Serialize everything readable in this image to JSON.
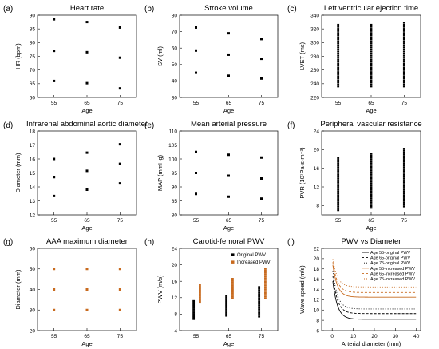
{
  "figure": {
    "colors": {
      "original": "#000000",
      "increased": "#c86a1e",
      "grey": "#555555"
    }
  },
  "chart_data": [
    {
      "id": "a",
      "panel_label": "(a)",
      "type": "scatter",
      "title": "Heart rate",
      "xlabel": "Age",
      "ylabel": "HR (bpm)",
      "xlim": [
        50,
        80
      ],
      "ylim": [
        60,
        90
      ],
      "xticks": [
        55,
        65,
        75
      ],
      "yticks": [
        60,
        65,
        70,
        75,
        80,
        85,
        90
      ],
      "series": [
        {
          "color": "#000000",
          "x": [
            55,
            55,
            55,
            65,
            65,
            65,
            75,
            75,
            75
          ],
          "y": [
            88.5,
            77,
            66,
            87.5,
            76.5,
            65.2,
            85.5,
            74.5,
            63.3
          ]
        }
      ]
    },
    {
      "id": "b",
      "panel_label": "(b)",
      "type": "scatter",
      "title": "Stroke volume",
      "xlabel": "Age",
      "ylabel": "SV (ml)",
      "xlim": [
        50,
        80
      ],
      "ylim": [
        30,
        80
      ],
      "xticks": [
        55,
        65,
        75
      ],
      "yticks": [
        30,
        40,
        50,
        60,
        70,
        80
      ],
      "series": [
        {
          "color": "#000000",
          "x": [
            55,
            55,
            55,
            65,
            65,
            65,
            75,
            75,
            75
          ],
          "y": [
            72.5,
            58.5,
            45,
            69,
            56,
            43.2,
            65.5,
            53.5,
            41.5
          ]
        }
      ]
    },
    {
      "id": "c",
      "panel_label": "(c)",
      "type": "scatter",
      "title": "Left ventricular ejection time",
      "xlabel": "Age",
      "ylabel": "LVET (ms)",
      "xlim": [
        50,
        80
      ],
      "ylim": [
        220,
        340
      ],
      "xticks": [
        55,
        65,
        75
      ],
      "yticks": [
        220,
        240,
        260,
        280,
        300,
        320,
        340
      ],
      "strips": [
        {
          "x": 55,
          "y_min": 236,
          "y_max": 327,
          "step": 3,
          "color": "#000000"
        },
        {
          "x": 65,
          "y_min": 236,
          "y_max": 328,
          "step": 3,
          "color": "#000000"
        },
        {
          "x": 75,
          "y_min": 236,
          "y_max": 329,
          "step": 3,
          "color": "#000000"
        }
      ]
    },
    {
      "id": "d",
      "panel_label": "(d)",
      "type": "scatter",
      "title": "Infrarenal abdominal aortic diameter",
      "xlabel": "Age",
      "ylabel": "Diameter (mm)",
      "xlim": [
        50,
        80
      ],
      "ylim": [
        12,
        18
      ],
      "xticks": [
        55,
        65,
        75
      ],
      "yticks": [
        12,
        13,
        14,
        15,
        16,
        17,
        18
      ],
      "series": [
        {
          "color": "#000000",
          "x": [
            55,
            55,
            55,
            65,
            65,
            65,
            75,
            75,
            75
          ],
          "y": [
            16,
            14.7,
            13.35,
            16.45,
            15.15,
            13.8,
            17.05,
            15.65,
            14.25
          ]
        }
      ]
    },
    {
      "id": "e",
      "panel_label": "(e)",
      "type": "scatter",
      "title": "Mean arterial pressure",
      "xlabel": "Age",
      "ylabel": "MAP (mmHg)",
      "xlim": [
        50,
        80
      ],
      "ylim": [
        80,
        110
      ],
      "xticks": [
        55,
        65,
        75
      ],
      "yticks": [
        80,
        85,
        90,
        95,
        100,
        105,
        110
      ],
      "series": [
        {
          "color": "#000000",
          "x": [
            55,
            55,
            55,
            65,
            65,
            65,
            75,
            75,
            75
          ],
          "y": [
            102.5,
            95,
            87.5,
            101.5,
            94,
            86.5,
            100.5,
            93,
            85.8
          ]
        }
      ]
    },
    {
      "id": "f",
      "panel_label": "(f)",
      "type": "scatter",
      "title": "Peripheral vascular resistance",
      "xlabel": "Age",
      "ylabel": "PVR (10⁷Pa·s·m⁻³)",
      "xlim": [
        50,
        80
      ],
      "ylim": [
        6,
        24
      ],
      "xticks": [
        55,
        65,
        75
      ],
      "yticks": [
        8,
        12,
        16,
        20,
        24
      ],
      "strips": [
        {
          "x": 55,
          "y_min": 7.0,
          "y_max": 18.5,
          "step": 0.4,
          "color": "#000000"
        },
        {
          "x": 65,
          "y_min": 7.5,
          "y_max": 19.2,
          "step": 0.4,
          "color": "#000000"
        },
        {
          "x": 75,
          "y_min": 7.8,
          "y_max": 20.3,
          "step": 0.4,
          "color": "#000000"
        }
      ]
    },
    {
      "id": "g",
      "panel_label": "(g)",
      "type": "scatter",
      "title": "AAA maximum diameter",
      "xlabel": "Age",
      "ylabel": "Diameter (mm)",
      "xlim": [
        50,
        80
      ],
      "ylim": [
        20,
        60
      ],
      "xticks": [
        55,
        65,
        75
      ],
      "yticks": [
        20,
        30,
        40,
        50,
        60
      ],
      "series": [
        {
          "color": "#c86a1e",
          "x": [
            55,
            55,
            55,
            65,
            65,
            65,
            75,
            75,
            75
          ],
          "y": [
            50,
            40,
            30,
            50,
            40,
            30,
            50,
            40,
            30
          ]
        }
      ]
    },
    {
      "id": "h",
      "panel_label": "(h)",
      "type": "scatter",
      "title": "Carotid-femoral PWV",
      "xlabel": "Age",
      "ylabel": "PWV (m/s)",
      "xlim": [
        50,
        80
      ],
      "ylim": [
        4,
        24
      ],
      "xticks": [
        55,
        65,
        75
      ],
      "yticks": [
        4,
        8,
        12,
        16,
        20,
        24
      ],
      "legend": {
        "position": "top-right",
        "entries": [
          "Original PWV",
          "Increased PWV"
        ]
      },
      "strips": [
        {
          "name": "Original PWV",
          "x": 54.3,
          "y_min": 6.8,
          "y_max": 11.2,
          "step": 0.4,
          "color": "#000000"
        },
        {
          "name": "Increased PWV",
          "x": 56.2,
          "y_min": 10.8,
          "y_max": 15.2,
          "step": 0.4,
          "color": "#c86a1e"
        },
        {
          "name": "Original PWV",
          "x": 64.3,
          "y_min": 7.6,
          "y_max": 12.4,
          "step": 0.4,
          "color": "#000000"
        },
        {
          "name": "Increased PWV",
          "x": 66.2,
          "y_min": 11.8,
          "y_max": 16.6,
          "step": 0.4,
          "color": "#c86a1e"
        },
        {
          "name": "Original PWV",
          "x": 74.3,
          "y_min": 7.4,
          "y_max": 14.8,
          "step": 0.45,
          "color": "#000000"
        },
        {
          "name": "Increased PWV",
          "x": 76.2,
          "y_min": 11.8,
          "y_max": 19.3,
          "step": 0.45,
          "color": "#c86a1e"
        }
      ]
    },
    {
      "id": "i",
      "panel_label": "(i)",
      "type": "line",
      "title": "PWV vs Diameter",
      "xlabel": "Arterial diameter (mm)",
      "ylabel": "Wave speed (m/s)",
      "xlim": [
        -5,
        42
      ],
      "ylim": [
        6,
        22
      ],
      "xticks": [
        0,
        10,
        20,
        30,
        40
      ],
      "yticks": [
        6,
        8,
        10,
        12,
        14,
        16,
        18,
        20,
        22
      ],
      "legend": {
        "position": "top-right"
      },
      "series": [
        {
          "name": "Age 55-original PWV",
          "color": "#000000",
          "dash": "",
          "a": 8.2,
          "b": 8.5
        },
        {
          "name": "Age 65-original PWV",
          "color": "#000000",
          "dash": "3,2",
          "a": 9.3,
          "b": 8.5
        },
        {
          "name": "Age 75-original PWV",
          "color": "#000000",
          "dash": "1,2",
          "a": 10.2,
          "b": 8.5
        },
        {
          "name": "Age 55-increased PWV",
          "color": "#c86a1e",
          "dash": "",
          "a": 12.5,
          "b": 7.2
        },
        {
          "name": "Age 65-increased PWV",
          "color": "#c86a1e",
          "dash": "3,2",
          "a": 13.4,
          "b": 6.8
        },
        {
          "name": "Age 75-increased PWV",
          "color": "#c86a1e",
          "dash": "1,2",
          "a": 14.5,
          "b": 6.2
        }
      ]
    }
  ]
}
